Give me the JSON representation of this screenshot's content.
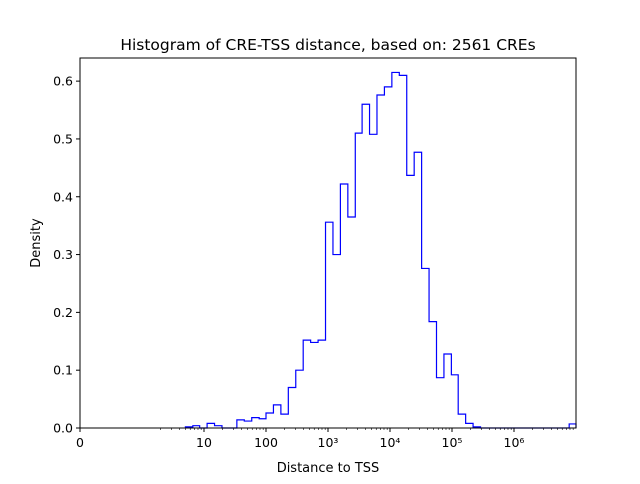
{
  "chart_data": {
    "type": "histogram",
    "title": "Histogram of CRE-TSS distance, based on: 2561 CREs",
    "xlabel": "Distance to TSS",
    "ylabel": "Density",
    "x_scale": "symlog",
    "xlim": [
      0,
      10000000
    ],
    "ylim": [
      0,
      0.64
    ],
    "x_ticks": [
      {
        "value": 0,
        "label": "0"
      },
      {
        "value": 10,
        "label": "10"
      },
      {
        "value": 100,
        "label": "100"
      },
      {
        "value": 1000,
        "label": "10³"
      },
      {
        "value": 10000,
        "label": "10⁴"
      },
      {
        "value": 100000,
        "label": "10⁵"
      },
      {
        "value": 1000000,
        "label": "10⁶"
      }
    ],
    "y_ticks": [
      {
        "value": 0.0,
        "label": "0.0"
      },
      {
        "value": 0.1,
        "label": "0.1"
      },
      {
        "value": 0.2,
        "label": "0.2"
      },
      {
        "value": 0.3,
        "label": "0.3"
      },
      {
        "value": 0.4,
        "label": "0.4"
      },
      {
        "value": 0.5,
        "label": "0.5"
      },
      {
        "value": 0.6,
        "label": "0.6"
      }
    ],
    "bin_edges_log10": [
      0.7,
      0.82,
      0.93,
      1.05,
      1.17,
      1.29,
      1.41,
      1.53,
      1.65,
      1.77,
      1.89,
      2.0,
      2.12,
      2.24,
      2.36,
      2.48,
      2.6,
      2.72,
      2.84,
      2.96,
      3.08,
      3.2,
      3.32,
      3.44,
      3.55,
      3.67,
      3.79,
      3.91,
      4.03,
      4.15,
      4.27,
      4.39,
      4.51,
      4.63,
      4.75,
      4.87,
      4.99,
      5.1,
      5.22,
      5.34,
      5.46,
      5.58,
      5.7,
      5.82,
      5.94,
      6.06,
      6.18,
      6.3,
      6.42,
      6.54,
      6.65,
      6.77,
      6.89,
      7.0
    ],
    "densities": [
      0.002,
      0.004,
      0.0,
      0.008,
      0.004,
      0.0,
      0.0,
      0.014,
      0.012,
      0.018,
      0.016,
      0.026,
      0.04,
      0.024,
      0.07,
      0.1,
      0.152,
      0.148,
      0.152,
      0.356,
      0.3,
      0.422,
      0.365,
      0.51,
      0.56,
      0.508,
      0.576,
      0.59,
      0.615,
      0.61,
      0.437,
      0.477,
      0.276,
      0.184,
      0.087,
      0.128,
      0.092,
      0.024,
      0.008,
      0.002,
      0.0,
      0.0,
      0.0,
      0.0,
      0.0,
      0.0,
      0.0,
      0.0,
      0.0,
      0.0,
      0.0,
      0.0,
      0.007
    ],
    "color": "#0000ff"
  }
}
